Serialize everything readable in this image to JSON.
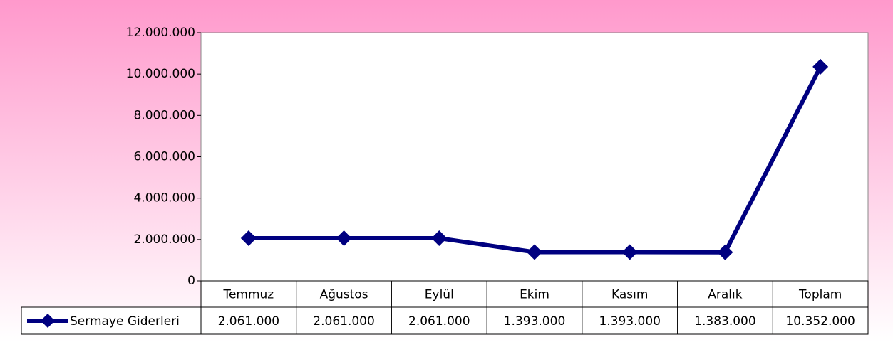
{
  "chart_data": {
    "type": "line",
    "categories": [
      "Temmuz",
      "Ağustos",
      "Eylül",
      "Ekim",
      "Kasım",
      "Aralık",
      "Toplam"
    ],
    "series": [
      {
        "name": "Sermaye Giderleri",
        "color": "#000080",
        "values": [
          2061000,
          2061000,
          2061000,
          1393000,
          1393000,
          1383000,
          10352000
        ],
        "value_labels": [
          "2.061.000",
          "2.061.000",
          "2.061.000",
          "1.393.000",
          "1.393.000",
          "1.383.000",
          "10.352.000"
        ]
      }
    ],
    "ylim": [
      0,
      12000000
    ],
    "yticks": [
      0,
      {
        "value": 2000000,
        "label": "2.000.000"
      },
      {
        "value": 4000000,
        "label": "4.000.000"
      },
      {
        "value": 6000000,
        "label": "6.000.000"
      },
      {
        "value": 8000000,
        "label": "8.000.000"
      },
      {
        "value": 10000000,
        "label": "10.000.000"
      },
      {
        "value": 12000000,
        "label": "12.000.000"
      }
    ],
    "grid": false
  }
}
